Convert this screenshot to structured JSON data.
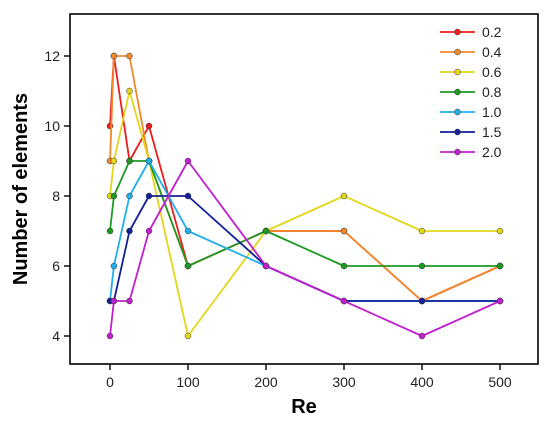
{
  "chart_data": {
    "type": "line",
    "title": "",
    "xlabel": "Re",
    "ylabel": "Number of elements",
    "x": [
      0,
      5,
      25,
      50,
      100,
      200,
      300,
      400,
      500
    ],
    "x_tick_values": [
      0,
      100,
      200,
      300,
      400,
      500
    ],
    "x_tick_labels": [
      "0",
      "100",
      "200",
      "300",
      "400",
      "500"
    ],
    "y_tick_values": [
      4,
      6,
      8,
      10,
      12
    ],
    "y_tick_labels": [
      "4",
      "6",
      "8",
      "10",
      "12"
    ],
    "ylim": [
      3.2,
      13.2
    ],
    "grid": false,
    "legend_position": "top-right",
    "series": [
      {
        "name": "0.2",
        "color": "#ee1c1c",
        "values": [
          10,
          12,
          9,
          10,
          6,
          7,
          7,
          5,
          6
        ]
      },
      {
        "name": "0.4",
        "color": "#f28a2c",
        "values": [
          9,
          12,
          12,
          9,
          6,
          7,
          7,
          5,
          6
        ]
      },
      {
        "name": "0.6",
        "color": "#e3d61b",
        "values": [
          8,
          9,
          11,
          9,
          4,
          7,
          8,
          7,
          7
        ]
      },
      {
        "name": "0.8",
        "color": "#1e9a24",
        "values": [
          7,
          8,
          9,
          9,
          6,
          7,
          6,
          6,
          6
        ]
      },
      {
        "name": "1.0",
        "color": "#22aeea",
        "values": [
          5,
          6,
          8,
          9,
          7,
          6,
          5,
          5,
          5
        ]
      },
      {
        "name": "1.5",
        "color": "#12209a",
        "values": [
          5,
          5,
          7,
          8,
          8,
          6,
          5,
          5,
          5
        ]
      },
      {
        "name": "2.0",
        "color": "#c21fcf",
        "values": [
          4,
          5,
          5,
          7,
          9,
          6,
          5,
          4,
          5
        ]
      }
    ]
  }
}
